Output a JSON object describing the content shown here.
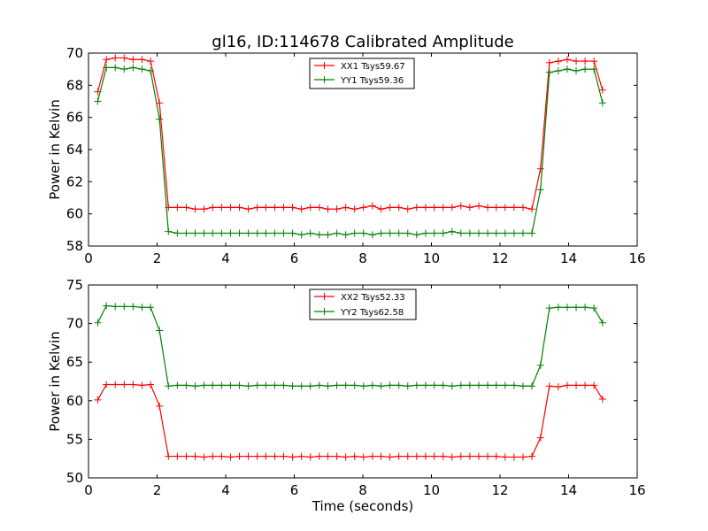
{
  "figure": {
    "xlabel": "Time (seconds)"
  },
  "chart_data": [
    {
      "type": "line",
      "title": "gl16, ID:114678 Calibrated Amplitude",
      "xlabel": "",
      "ylabel": "Power in Kelvin",
      "xlim": [
        0,
        16
      ],
      "ylim": [
        58,
        70
      ],
      "xticks": [
        "0",
        "2",
        "4",
        "6",
        "8",
        "10",
        "12",
        "14",
        "16"
      ],
      "yticks": [
        "58",
        "60",
        "62",
        "64",
        "66",
        "68",
        "70"
      ],
      "legend_position": "top-center",
      "series": [
        {
          "name": "XX1 Tsys59.67",
          "color": "#ff0000",
          "x": [
            0.27,
            0.52,
            0.78,
            1.04,
            1.3,
            1.56,
            1.81,
            2.07,
            2.33,
            2.59,
            2.85,
            3.11,
            3.37,
            3.62,
            3.88,
            4.14,
            4.4,
            4.66,
            4.92,
            5.17,
            5.43,
            5.69,
            5.95,
            6.21,
            6.47,
            6.73,
            6.98,
            7.24,
            7.5,
            7.76,
            8.02,
            8.28,
            8.53,
            8.79,
            9.05,
            9.31,
            9.57,
            9.83,
            10.08,
            10.34,
            10.6,
            10.86,
            11.12,
            11.38,
            11.64,
            11.89,
            12.15,
            12.41,
            12.67,
            12.93,
            13.18,
            13.44,
            13.7,
            13.96,
            14.22,
            14.48,
            14.74,
            14.99
          ],
          "values": [
            67.6,
            69.6,
            69.7,
            69.7,
            69.6,
            69.6,
            69.5,
            66.9,
            60.4,
            60.4,
            60.4,
            60.3,
            60.3,
            60.4,
            60.4,
            60.4,
            60.4,
            60.3,
            60.4,
            60.4,
            60.4,
            60.4,
            60.4,
            60.3,
            60.4,
            60.4,
            60.3,
            60.3,
            60.4,
            60.3,
            60.4,
            60.5,
            60.3,
            60.4,
            60.4,
            60.3,
            60.4,
            60.4,
            60.4,
            60.4,
            60.4,
            60.5,
            60.4,
            60.5,
            60.4,
            60.4,
            60.4,
            60.4,
            60.4,
            60.3,
            62.8,
            69.4,
            69.5,
            69.6,
            69.5,
            69.5,
            69.5,
            67.7
          ]
        },
        {
          "name": "YY1 Tsys59.36",
          "color": "#008000",
          "x": [
            0.27,
            0.52,
            0.78,
            1.04,
            1.3,
            1.56,
            1.81,
            2.07,
            2.33,
            2.59,
            2.85,
            3.11,
            3.37,
            3.62,
            3.88,
            4.14,
            4.4,
            4.66,
            4.92,
            5.17,
            5.43,
            5.69,
            5.95,
            6.21,
            6.47,
            6.73,
            6.98,
            7.24,
            7.5,
            7.76,
            8.02,
            8.28,
            8.53,
            8.79,
            9.05,
            9.31,
            9.57,
            9.83,
            10.08,
            10.34,
            10.6,
            10.86,
            11.12,
            11.38,
            11.64,
            11.89,
            12.15,
            12.41,
            12.67,
            12.93,
            13.18,
            13.44,
            13.7,
            13.96,
            14.22,
            14.48,
            14.74,
            14.99
          ],
          "values": [
            67.0,
            69.1,
            69.1,
            69.0,
            69.1,
            69.0,
            68.9,
            65.9,
            58.9,
            58.8,
            58.8,
            58.8,
            58.8,
            58.8,
            58.8,
            58.8,
            58.8,
            58.8,
            58.8,
            58.8,
            58.8,
            58.8,
            58.8,
            58.7,
            58.8,
            58.7,
            58.7,
            58.8,
            58.7,
            58.8,
            58.8,
            58.7,
            58.8,
            58.8,
            58.8,
            58.8,
            58.7,
            58.8,
            58.8,
            58.8,
            58.9,
            58.8,
            58.8,
            58.8,
            58.8,
            58.8,
            58.8,
            58.8,
            58.8,
            58.8,
            61.5,
            68.8,
            68.9,
            69.0,
            68.9,
            69.0,
            69.0,
            66.9
          ]
        }
      ]
    },
    {
      "type": "line",
      "title": "",
      "xlabel": "Time (seconds)",
      "ylabel": "Power in Kelvin",
      "xlim": [
        0,
        16
      ],
      "ylim": [
        50,
        75
      ],
      "xticks": [
        "0",
        "2",
        "4",
        "6",
        "8",
        "10",
        "12",
        "14",
        "16"
      ],
      "yticks": [
        "50",
        "55",
        "60",
        "65",
        "70",
        "75"
      ],
      "legend_position": "top-center",
      "series": [
        {
          "name": "XX2 Tsys52.33",
          "color": "#ff0000",
          "x": [
            0.27,
            0.52,
            0.78,
            1.04,
            1.3,
            1.56,
            1.81,
            2.07,
            2.33,
            2.59,
            2.85,
            3.11,
            3.37,
            3.62,
            3.88,
            4.14,
            4.4,
            4.66,
            4.92,
            5.17,
            5.43,
            5.69,
            5.95,
            6.21,
            6.47,
            6.73,
            6.98,
            7.24,
            7.5,
            7.76,
            8.02,
            8.28,
            8.53,
            8.79,
            9.05,
            9.31,
            9.57,
            9.83,
            10.08,
            10.34,
            10.6,
            10.86,
            11.12,
            11.38,
            11.64,
            11.89,
            12.15,
            12.41,
            12.67,
            12.93,
            13.18,
            13.44,
            13.7,
            13.96,
            14.22,
            14.48,
            14.74,
            14.99
          ],
          "values": [
            60.1,
            62.1,
            62.1,
            62.1,
            62.1,
            62.0,
            62.1,
            59.3,
            52.8,
            52.8,
            52.8,
            52.8,
            52.7,
            52.8,
            52.8,
            52.7,
            52.8,
            52.8,
            52.8,
            52.8,
            52.8,
            52.8,
            52.7,
            52.8,
            52.7,
            52.8,
            52.8,
            52.8,
            52.7,
            52.8,
            52.7,
            52.8,
            52.8,
            52.7,
            52.8,
            52.8,
            52.8,
            52.8,
            52.8,
            52.8,
            52.7,
            52.8,
            52.8,
            52.8,
            52.8,
            52.8,
            52.7,
            52.7,
            52.7,
            52.8,
            55.2,
            61.9,
            61.8,
            62.0,
            62.0,
            62.0,
            62.0,
            60.2
          ]
        },
        {
          "name": "YY2 Tsys62.58",
          "color": "#008000",
          "x": [
            0.27,
            0.52,
            0.78,
            1.04,
            1.3,
            1.56,
            1.81,
            2.07,
            2.33,
            2.59,
            2.85,
            3.11,
            3.37,
            3.62,
            3.88,
            4.14,
            4.4,
            4.66,
            4.92,
            5.17,
            5.43,
            5.69,
            5.95,
            6.21,
            6.47,
            6.73,
            6.98,
            7.24,
            7.5,
            7.76,
            8.02,
            8.28,
            8.53,
            8.79,
            9.05,
            9.31,
            9.57,
            9.83,
            10.08,
            10.34,
            10.6,
            10.86,
            11.12,
            11.38,
            11.64,
            11.89,
            12.15,
            12.41,
            12.67,
            12.93,
            13.18,
            13.44,
            13.7,
            13.96,
            14.22,
            14.48,
            14.74,
            14.99
          ],
          "values": [
            70.1,
            72.3,
            72.2,
            72.2,
            72.2,
            72.1,
            72.1,
            69.1,
            61.9,
            62.0,
            62.0,
            61.9,
            62.0,
            62.0,
            62.0,
            62.0,
            62.0,
            61.9,
            62.0,
            62.0,
            62.0,
            62.0,
            61.9,
            61.9,
            61.9,
            62.0,
            61.9,
            62.0,
            62.0,
            62.0,
            61.9,
            62.0,
            61.9,
            62.0,
            62.0,
            61.9,
            62.0,
            62.0,
            62.0,
            62.0,
            61.9,
            62.0,
            62.0,
            62.0,
            62.0,
            62.0,
            62.0,
            62.0,
            61.9,
            61.9,
            64.6,
            72.0,
            72.1,
            72.1,
            72.1,
            72.1,
            72.0,
            70.1
          ]
        }
      ]
    }
  ]
}
